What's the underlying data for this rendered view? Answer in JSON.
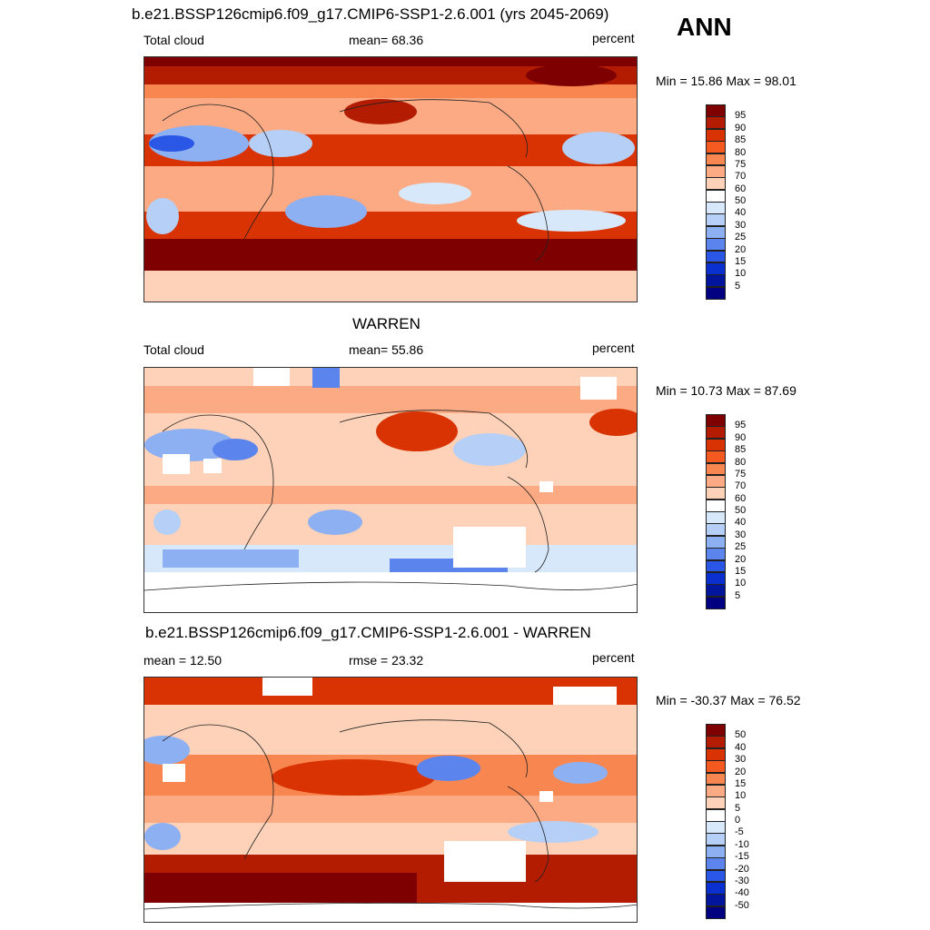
{
  "header": {
    "title": "b.e21.BSSP126cmip6.f09_g17.CMIP6-SSP1-2.6.001 (yrs 2045-2069)",
    "season": "ANN"
  },
  "panels": [
    {
      "id": "model",
      "title": "",
      "left_label": "Total cloud",
      "center_label": "mean=  68.36",
      "right_label": "percent",
      "minmax_label": "Min =  15.86 Max =  98.01",
      "colorbar_ticks": [
        "95",
        "90",
        "85",
        "80",
        "75",
        "70",
        "60",
        "50",
        "40",
        "30",
        "25",
        "20",
        "15",
        "10",
        "5"
      ]
    },
    {
      "id": "obs",
      "title": "WARREN",
      "left_label": "Total cloud",
      "center_label": "mean=  55.86",
      "right_label": "percent",
      "minmax_label": "Min =  10.73 Max =  87.69",
      "colorbar_ticks": [
        "95",
        "90",
        "85",
        "80",
        "75",
        "70",
        "60",
        "50",
        "40",
        "30",
        "25",
        "20",
        "15",
        "10",
        "5"
      ]
    },
    {
      "id": "diff",
      "title": "b.e21.BSSP126cmip6.f09_g17.CMIP6-SSP1-2.6.001 - WARREN",
      "left_label": "mean =  12.50",
      "center_label": "rmse =  23.32",
      "right_label": "percent",
      "minmax_label": "Min = -30.37 Max =  76.52",
      "colorbar_ticks": [
        "50",
        "40",
        "30",
        "20",
        "15",
        "10",
        "5",
        "0",
        "-5",
        "-10",
        "-15",
        "-20",
        "-30",
        "-40",
        "-50"
      ]
    }
  ],
  "palette": [
    "#7f0000",
    "#b41c02",
    "#d93303",
    "#f45a1f",
    "#f88650",
    "#fbaa83",
    "#fdd2b8",
    "#ffffff",
    "#d8e8fb",
    "#b5cff7",
    "#8db0f2",
    "#5b85ed",
    "#2b57e6",
    "#0a30cf",
    "#01169c",
    "#000080"
  ],
  "chart_data": [
    {
      "type": "heatmap",
      "title": "b.e21.BSSP126cmip6.f09_g17.CMIP6-SSP1-2.6.001 (yrs 2045-2069)",
      "variable": "Total cloud",
      "units": "percent",
      "mean": 68.36,
      "min": 15.86,
      "max": 98.01,
      "levels": [
        5,
        10,
        15,
        20,
        25,
        30,
        40,
        50,
        60,
        70,
        75,
        80,
        85,
        90,
        95
      ]
    },
    {
      "type": "heatmap",
      "title": "WARREN",
      "variable": "Total cloud",
      "units": "percent",
      "mean": 55.86,
      "min": 10.73,
      "max": 87.69,
      "levels": [
        5,
        10,
        15,
        20,
        25,
        30,
        40,
        50,
        60,
        70,
        75,
        80,
        85,
        90,
        95
      ]
    },
    {
      "type": "heatmap",
      "title": "b.e21.BSSP126cmip6.f09_g17.CMIP6-SSP1-2.6.001 - WARREN",
      "units": "percent",
      "mean": 12.5,
      "rmse": 23.32,
      "min": -30.37,
      "max": 76.52,
      "levels": [
        -50,
        -40,
        -30,
        -20,
        -15,
        -10,
        -5,
        0,
        5,
        10,
        15,
        20,
        30,
        40,
        50
      ]
    }
  ]
}
